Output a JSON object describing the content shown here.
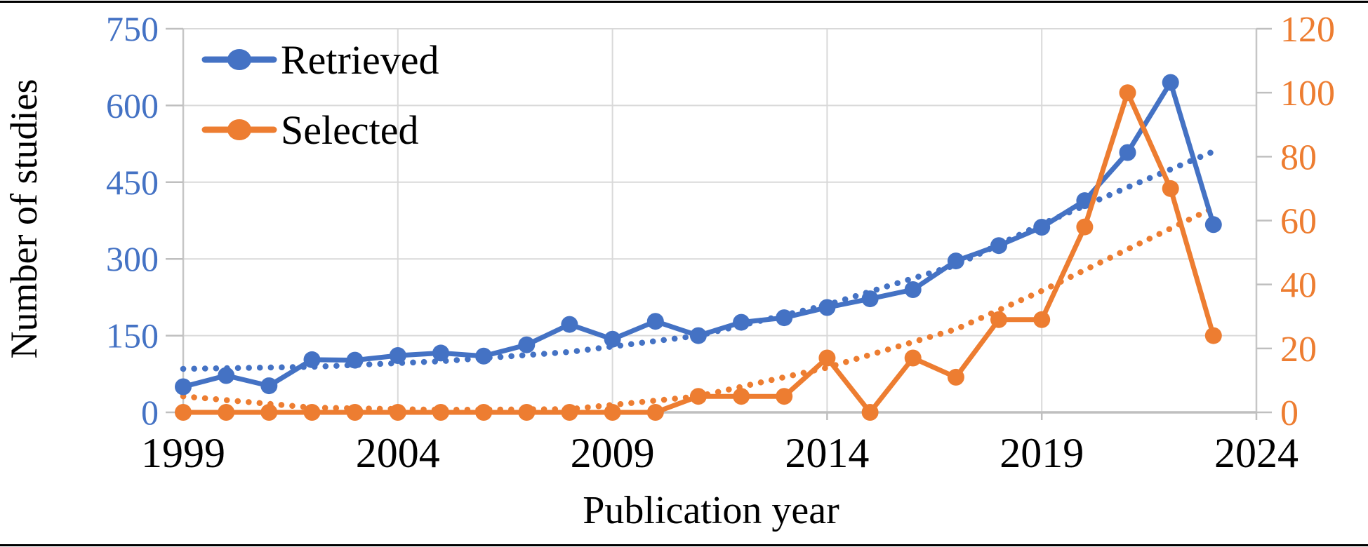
{
  "chart_data": {
    "type": "line",
    "title": "",
    "xlabel": "Publication year",
    "ylabel_left": "Number of studies",
    "x_years": [
      1999,
      2000,
      2001,
      2002,
      2003,
      2004,
      2005,
      2006,
      2007,
      2008,
      2009,
      2010,
      2011,
      2012,
      2013,
      2014,
      2015,
      2016,
      2017,
      2018,
      2019,
      2020,
      2021,
      2022,
      2023
    ],
    "x_tick_years": [
      1999,
      2004,
      2009,
      2014,
      2019,
      2024
    ],
    "x_tick_labels": [
      "1999",
      "2004",
      "2009",
      "2014",
      "2019",
      "2024"
    ],
    "axis_left": {
      "min": 0,
      "max": 750,
      "ticks": [
        0,
        150,
        300,
        450,
        600,
        750
      ],
      "label_color": "#4472C4"
    },
    "axis_right": {
      "min": 0,
      "max": 120,
      "ticks": [
        0,
        20,
        40,
        60,
        80,
        100,
        120
      ],
      "label_color": "#ED7D31"
    },
    "grid": true,
    "legend_position": "top-left-inside",
    "series": [
      {
        "name": "Retrieved",
        "axis": "left",
        "color": "#4472C4",
        "marker": "circle",
        "values": [
          50,
          72,
          52,
          103,
          102,
          111,
          116,
          110,
          132,
          172,
          143,
          178,
          150,
          176,
          185,
          205,
          222,
          240,
          296,
          326,
          362,
          414,
          508,
          645,
          367
        ]
      },
      {
        "name": "Selected",
        "axis": "right",
        "color": "#ED7D31",
        "marker": "circle",
        "values": [
          0,
          0,
          0,
          0,
          0,
          0,
          0,
          0,
          0,
          0,
          0,
          0,
          5,
          5,
          5,
          17,
          0,
          17,
          11,
          29,
          29,
          58,
          100,
          70,
          24
        ]
      }
    ],
    "trendlines": [
      {
        "series": "Retrieved",
        "axis": "left",
        "style": "dotted",
        "color": "#4472C4",
        "points": [
          [
            1999,
            85
          ],
          [
            2002,
            89
          ],
          [
            2005,
            100
          ],
          [
            2008,
            118
          ],
          [
            2011,
            150
          ],
          [
            2014,
            210
          ],
          [
            2017,
            288
          ],
          [
            2019,
            368
          ],
          [
            2021,
            440
          ],
          [
            2023,
            510
          ]
        ]
      },
      {
        "series": "Selected",
        "axis": "right",
        "style": "dotted",
        "color": "#ED7D31",
        "points": [
          [
            1999,
            5
          ],
          [
            2002,
            1.5
          ],
          [
            2005,
            0.8
          ],
          [
            2008,
            1
          ],
          [
            2011,
            5
          ],
          [
            2014,
            14
          ],
          [
            2017,
            26
          ],
          [
            2019,
            38
          ],
          [
            2021,
            51
          ],
          [
            2023,
            64
          ]
        ]
      }
    ],
    "colors": {
      "gridline": "#D9D9D9",
      "axis_line": "#BFBFBF",
      "text": "#000000"
    }
  }
}
